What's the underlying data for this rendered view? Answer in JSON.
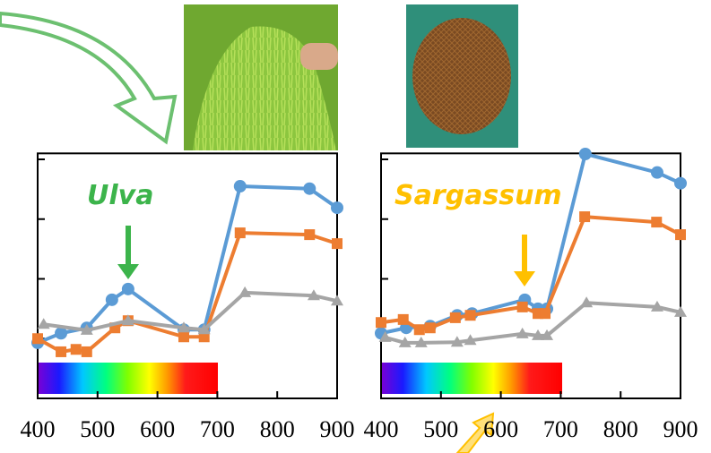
{
  "chart_data": [
    {
      "type": "line",
      "annotation": "Ulva",
      "annotation_color": "#3cb44b",
      "xlim": [
        400,
        900
      ],
      "xticks": [
        400,
        500,
        600,
        700,
        800,
        900
      ],
      "ylim": [
        0,
        4.1
      ],
      "yticks": [
        0,
        1,
        2,
        3,
        4
      ],
      "series": [
        {
          "color": "#5b9bd5",
          "marker": "circle",
          "x": [
            400,
            439,
            482,
            524,
            551,
            644,
            678,
            738,
            854,
            900
          ],
          "values": [
            0.93,
            1.09,
            1.18,
            1.65,
            1.83,
            1.15,
            1.15,
            3.55,
            3.51,
            3.19
          ]
        },
        {
          "color": "#ed7d31",
          "marker": "square",
          "x": [
            400,
            439,
            464,
            482,
            529,
            551,
            644,
            678,
            738,
            854,
            900
          ],
          "values": [
            1.0,
            0.78,
            0.82,
            0.78,
            1.18,
            1.3,
            1.03,
            1.03,
            2.77,
            2.74,
            2.59
          ]
        },
        {
          "color": "#a5a5a5",
          "marker": "triangle",
          "x": [
            410,
            482,
            551,
            644,
            678,
            746,
            861,
            900
          ],
          "values": [
            1.24,
            1.14,
            1.3,
            1.18,
            1.15,
            1.77,
            1.72,
            1.63
          ]
        }
      ]
    },
    {
      "type": "line",
      "annotation": "Sargassum",
      "annotation_color": "#ffc000",
      "xlim": [
        400,
        900
      ],
      "xticks": [
        400,
        500,
        600,
        700,
        800,
        900
      ],
      "ylim": [
        0,
        4.1
      ],
      "yticks": [
        0,
        1,
        2,
        3,
        4
      ],
      "series": [
        {
          "color": "#5b9bd5",
          "marker": "circle",
          "x": [
            400,
            442,
            482,
            527,
            552,
            640,
            662,
            677,
            741,
            861,
            900
          ],
          "values": [
            1.09,
            1.18,
            1.21,
            1.39,
            1.42,
            1.65,
            1.5,
            1.5,
            4.09,
            3.78,
            3.6
          ]
        },
        {
          "color": "#ed7d31",
          "marker": "square",
          "x": [
            400,
            437,
            464,
            482,
            524,
            549,
            636,
            662,
            674,
            740,
            860,
            900
          ],
          "values": [
            1.27,
            1.32,
            1.15,
            1.18,
            1.35,
            1.39,
            1.53,
            1.42,
            1.42,
            3.04,
            2.95,
            2.74
          ]
        },
        {
          "color": "#a5a5a5",
          "marker": "triangle",
          "x": [
            407,
            440,
            467,
            527,
            549,
            636,
            662,
            677,
            743,
            861,
            900
          ],
          "values": [
            1.02,
            0.93,
            0.93,
            0.94,
            0.97,
            1.08,
            1.05,
            1.05,
            1.6,
            1.53,
            1.44
          ]
        }
      ]
    }
  ]
}
